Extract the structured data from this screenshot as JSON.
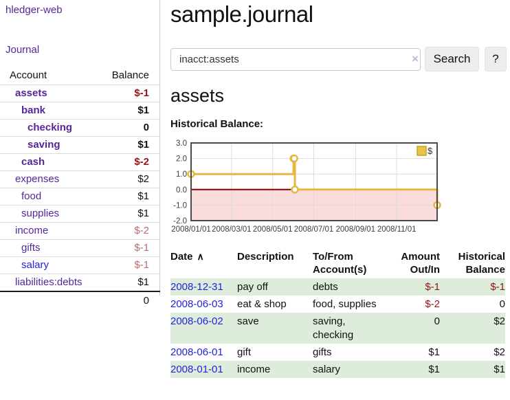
{
  "colors": {
    "link_purple": "#55269b",
    "link_blue": "#2323dd",
    "negative": "#991414",
    "negative_soft": "#b76f6f",
    "row_green": "#ddecdb",
    "chart_gold": "#e3b83c",
    "chart_gold_fill": "#eac345",
    "chart_negative_region": "#fbdcdc",
    "chart_zero_line": "#8b0000",
    "chart_grid": "#dcdcdc",
    "chart_border": "#4a4a4a"
  },
  "sidebar": {
    "brand": "hledger-web",
    "nav_journal": "Journal",
    "header": {
      "account": "Account",
      "balance": "Balance"
    },
    "accounts": [
      {
        "name": "assets",
        "depth": 1,
        "bold": true,
        "link": "purple",
        "balance": "$-1",
        "balance_class": "neg"
      },
      {
        "name": "bank",
        "depth": 2,
        "bold": true,
        "link": "purple",
        "balance": "$1",
        "balance_class": "plain"
      },
      {
        "name": "checking",
        "depth": 3,
        "bold": true,
        "link": "purple",
        "balance": "0",
        "balance_class": "plain"
      },
      {
        "name": "saving",
        "depth": 3,
        "bold": true,
        "link": "purple",
        "balance": "$1",
        "balance_class": "plain"
      },
      {
        "name": "cash",
        "depth": 2,
        "bold": true,
        "link": "purple",
        "balance": "$-2",
        "balance_class": "neg"
      },
      {
        "name": "expenses",
        "depth": 1,
        "bold": false,
        "link": "purple",
        "balance": "$2",
        "balance_class": "plain"
      },
      {
        "name": "food",
        "depth": 2,
        "bold": false,
        "link": "purple",
        "balance": "$1",
        "balance_class": "plain"
      },
      {
        "name": "supplies",
        "depth": 2,
        "bold": false,
        "link": "purple",
        "balance": "$1",
        "balance_class": "plain"
      },
      {
        "name": "income",
        "depth": 1,
        "bold": false,
        "link": "purple",
        "balance": "$-2",
        "balance_class": "soft"
      },
      {
        "name": "gifts",
        "depth": 2,
        "bold": false,
        "link": "purple",
        "balance": "$-1",
        "balance_class": "soft"
      },
      {
        "name": "salary",
        "depth": 2,
        "bold": false,
        "link": "blue",
        "balance": "$-1",
        "balance_class": "soft"
      },
      {
        "name": "liabilities:debts",
        "depth": 1,
        "bold": false,
        "link": "purple",
        "balance": "$1",
        "balance_class": "plain"
      }
    ],
    "total": "0"
  },
  "header": {
    "title": "sample.journal"
  },
  "search": {
    "value": "inacct:assets",
    "clear_icon": "×",
    "button_label": "Search",
    "help_label": "?"
  },
  "account_page": {
    "heading": "assets",
    "chart_title": "Historical Balance:"
  },
  "chart_data": {
    "type": "line",
    "step": true,
    "title": "Historical Balance",
    "series": [
      {
        "name": "$",
        "points": [
          [
            "2008-01-01",
            1
          ],
          [
            "2008-06-01",
            2
          ],
          [
            "2008-06-02",
            2
          ],
          [
            "2008-06-03",
            0
          ],
          [
            "2008-12-31",
            -1
          ]
        ]
      }
    ],
    "xlim": [
      "2008-01-01",
      "2008-12-31"
    ],
    "ylim": [
      -2,
      3
    ],
    "y_ticks": [
      3.0,
      2.0,
      1.0,
      0.0,
      -1.0,
      -2.0
    ],
    "x_ticks": [
      "2008/01/01",
      "2008/03/01",
      "2008/05/01",
      "2008/07/01",
      "2008/09/01",
      "2008/11/01"
    ],
    "grid": true,
    "legend": {
      "label": "$",
      "position": "top-right"
    },
    "negative_region_shaded": true
  },
  "register": {
    "sort_indicator": "∧",
    "columns": [
      {
        "label": "Date"
      },
      {
        "label": "Description"
      },
      {
        "label": "To/From\nAccount(s)"
      },
      {
        "label": "Amount\nOut/In"
      },
      {
        "label": "Historical\nBalance"
      }
    ],
    "rows": [
      {
        "date": "2008-12-31",
        "description": "pay off",
        "accounts": "debts",
        "amount": "$-1",
        "amount_neg": true,
        "balance": "$-1",
        "balance_neg": true
      },
      {
        "date": "2008-06-03",
        "description": "eat & shop",
        "accounts": "food, supplies",
        "amount": "$-2",
        "amount_neg": true,
        "balance": "0",
        "balance_neg": false
      },
      {
        "date": "2008-06-02",
        "description": "save",
        "accounts": "saving,\nchecking",
        "amount": "0",
        "amount_neg": false,
        "balance": "$2",
        "balance_neg": false
      },
      {
        "date": "2008-06-01",
        "description": "gift",
        "accounts": "gifts",
        "amount": "$1",
        "amount_neg": false,
        "balance": "$2",
        "balance_neg": false
      },
      {
        "date": "2008-01-01",
        "description": "income",
        "accounts": "salary",
        "amount": "$1",
        "amount_neg": false,
        "balance": "$1",
        "balance_neg": false
      }
    ]
  }
}
